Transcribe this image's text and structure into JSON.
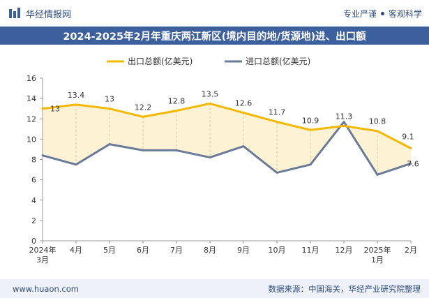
{
  "header": {
    "brand": "华经情报网",
    "tagline_left": "专业严谨",
    "tagline_right": "客观科学"
  },
  "title": "2024-2025年2月年重庆两江新区(境内目的地/货源地)进、出口额",
  "footer": {
    "website": "www.huaon.com",
    "source": "数据来源：中国海关，华经产业研究院整理"
  },
  "colors": {
    "export": "#f5b800",
    "import": "#6a7a99",
    "fill": "#fdf3d4",
    "title_bg": "#3c5f9e"
  },
  "chart_data": {
    "type": "line",
    "categories": [
      [
        "2024年",
        "3月"
      ],
      [
        "4月"
      ],
      [
        "5月"
      ],
      [
        "6月"
      ],
      [
        "7月"
      ],
      [
        "8月"
      ],
      [
        "9月"
      ],
      [
        "10月"
      ],
      [
        "11月"
      ],
      [
        "12月"
      ],
      [
        "2025年",
        "1月"
      ],
      [
        "2月"
      ]
    ],
    "series": [
      {
        "name": "出口总额(亿美元)",
        "values": [
          13,
          13.4,
          13,
          12.2,
          12.8,
          13.5,
          12.6,
          11.7,
          10.9,
          11.3,
          10.8,
          9.1
        ]
      },
      {
        "name": "进口总额(亿美元)",
        "values": [
          8.4,
          7.5,
          9.5,
          8.9,
          8.9,
          8.2,
          9.3,
          6.7,
          7.5,
          11.7,
          6.5,
          7.6
        ]
      }
    ],
    "labels": {
      "export": [
        "13",
        "13.4",
        "13",
        "12.2",
        "12.8",
        "13.5",
        "12.6",
        "11.7",
        "10.9",
        "11.3",
        "10.8",
        "9.1"
      ],
      "import_last": "7.6"
    },
    "ylim": [
      0,
      16
    ],
    "yticks": [
      0,
      2,
      4,
      6,
      8,
      10,
      12,
      14,
      16
    ],
    "grid": false,
    "legend": "top-center"
  }
}
